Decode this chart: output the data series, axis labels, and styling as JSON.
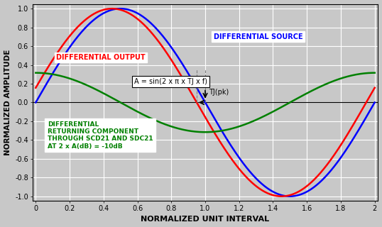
{
  "xlabel": "NORMALIZED UNIT INTERVAL",
  "ylabel": "NORMALIZED AMPLITUDE",
  "xlim": [
    0,
    2
  ],
  "ylim": [
    -1.0,
    1.0
  ],
  "xticks": [
    0,
    0.2,
    0.4,
    0.6,
    0.8,
    1.0,
    1.2,
    1.4,
    1.6,
    1.8,
    2.0
  ],
  "yticks": [
    -1.0,
    -0.8,
    -0.6,
    -0.4,
    -0.2,
    0.0,
    0.2,
    0.4,
    0.6,
    0.8,
    1.0
  ],
  "bg_color": "#c8c8c8",
  "blue_label": "DIFFERENTIAL SOURCE",
  "red_label": "DIFFERENTIAL OUTPUT",
  "green_label": "DIFFERENTIAL\nRETURNING COMPONENT\nTHROUGH SCD21 AND SDC21\nAT 2 x A(dB) = -10dB",
  "annotation_eq": "A = sin(2 x π x TJ x f)",
  "annotation_tj": "TJ(pk)",
  "TJ_pk": 0.05,
  "blue_period": 2.0,
  "blue_phase": 0.5,
  "red_period": 2.0,
  "red_phase": 0.45,
  "green_amplitude": 0.316,
  "green_period": 2.0,
  "green_phase": 0.0
}
